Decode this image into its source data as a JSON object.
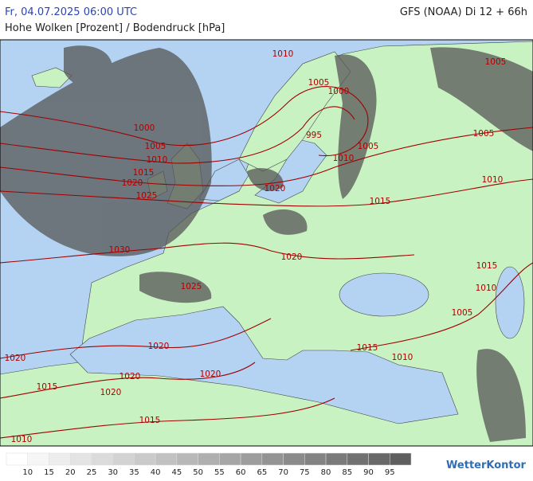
{
  "header": {
    "datetime": "Fr, 04.07.2025 06:00 UTC",
    "model": "GFS (NOAA) Di 12 + 66h",
    "subtitle": "Hohe Wolken [Prozent] / Bodendruck [hPa]"
  },
  "isobar_labels": [
    "1010",
    "1005",
    "1005",
    "1000",
    "1000",
    "995",
    "1005",
    "1005",
    "1005",
    "1010",
    "1010",
    "1015",
    "1010",
    "1020",
    "1020",
    "1025",
    "1015",
    "1030",
    "1020",
    "1015",
    "1010",
    "1025",
    "1005",
    "1020",
    "1015",
    "1010",
    "1020",
    "1020",
    "1020",
    "1015",
    "1020",
    "1015",
    "1010"
  ],
  "legend": {
    "labels": [
      10,
      15,
      20,
      25,
      30,
      35,
      40,
      45,
      50,
      55,
      60,
      65,
      70,
      75,
      80,
      85,
      90,
      95
    ]
  },
  "logo": "WetterKontor"
}
